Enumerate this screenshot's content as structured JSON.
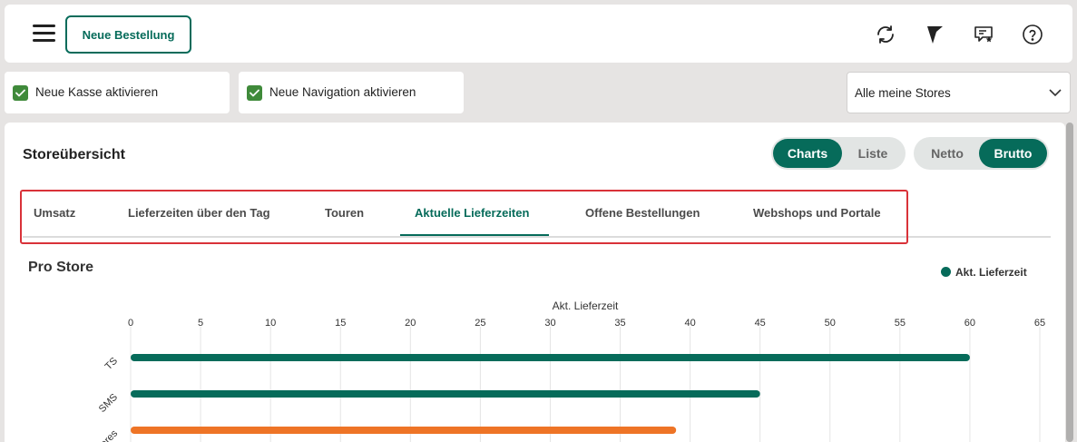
{
  "header": {
    "new_order_label": "Neue Bestellung",
    "icons": [
      "menu-icon",
      "refresh-icon",
      "flag-icon",
      "chat-star-icon",
      "help-icon"
    ]
  },
  "options": {
    "kasse_label": "Neue Kasse aktivieren",
    "kasse_checked": true,
    "navigation_label": "Neue Navigation aktivieren",
    "navigation_checked": true
  },
  "store_select": {
    "value": "Alle meine Stores"
  },
  "panel": {
    "title": "Storeübersicht",
    "view_toggle": {
      "options": [
        "Charts",
        "Liste"
      ],
      "active": "Charts"
    },
    "price_toggle": {
      "options": [
        "Netto",
        "Brutto"
      ],
      "active": "Brutto"
    },
    "tabs": [
      "Umsatz",
      "Lieferzeiten über den Tag",
      "Touren",
      "Aktuelle Lieferzeiten",
      "Offene Bestellungen",
      "Webshops und Portale"
    ],
    "active_tab": "Aktuelle Lieferzeiten"
  },
  "colors": {
    "primary": "#066b5a",
    "highlight_border": "#d93239",
    "bar_orange": "#ee7426",
    "checkbox": "#3f8a3a"
  },
  "chart_data": {
    "type": "bar",
    "orientation": "horizontal",
    "title": "Pro Store",
    "xlabel": "Akt. Lieferzeit",
    "xlim": [
      0,
      65
    ],
    "xticks": [
      0,
      5,
      10,
      15,
      20,
      25,
      30,
      35,
      40,
      45,
      50,
      55,
      60,
      65
    ],
    "legend": "Akt. Lieferzeit",
    "legend_position": "top-right",
    "grid": true,
    "categories": [
      "TS",
      "SMS",
      "ores"
    ],
    "values": [
      60,
      45,
      39
    ],
    "bar_colors": [
      "#066b5a",
      "#066b5a",
      "#ee7426"
    ]
  }
}
